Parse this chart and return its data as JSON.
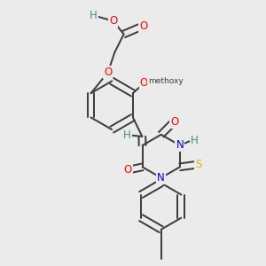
{
  "bg_color": "#ebebeb",
  "bond_color": "#3a3a3a",
  "bond_width": 1.4,
  "atom_colors": {
    "O": "#ff0000",
    "N": "#0000cc",
    "S": "#ccbb00",
    "H": "#4a8888",
    "C": "#3a3a3a"
  },
  "font_size": 8.5,
  "fig_width": 3.0,
  "fig_height": 3.0,
  "dpi": 100
}
